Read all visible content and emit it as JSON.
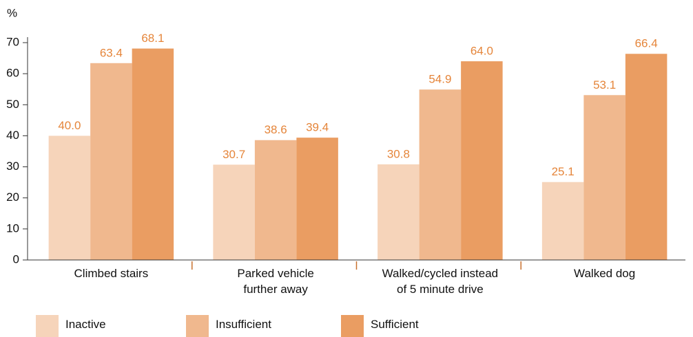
{
  "chart_data": {
    "type": "bar",
    "y_label": "%",
    "categories": [
      "Climbed stairs",
      "Parked vehicle\nfurther away",
      "Walked/cycled instead\nof 5 minute drive",
      "Walked dog"
    ],
    "series": [
      {
        "name": "Inactive",
        "color": "#f6d4ba",
        "values": [
          40.0,
          30.7,
          30.8,
          25.1
        ],
        "value_labels": [
          "40.0",
          "30.7",
          "30.8",
          "25.1"
        ]
      },
      {
        "name": "Insufficient",
        "color": "#f0b88e",
        "values": [
          63.4,
          38.6,
          54.9,
          53.1
        ],
        "value_labels": [
          "63.4",
          "38.6",
          "54.9",
          "53.1"
        ]
      },
      {
        "name": "Sufficient",
        "color": "#ea9d62",
        "values": [
          68.1,
          39.4,
          64.0,
          66.4
        ],
        "value_labels": [
          "68.1",
          "39.4",
          "64.0",
          "66.4"
        ]
      }
    ],
    "ylim": [
      0,
      70
    ],
    "yticks": [
      0,
      10,
      20,
      30,
      40,
      50,
      60,
      70
    ],
    "label_color": "#e5853a"
  }
}
